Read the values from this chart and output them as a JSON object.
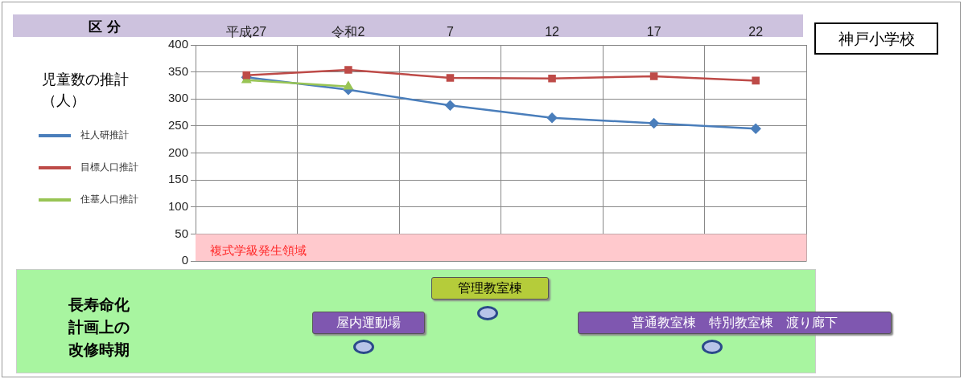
{
  "chart_data": {
    "type": "line",
    "title": "神戸小学校",
    "ylabel": "児童数の推計（人）",
    "categories": [
      "平成27",
      "令和2",
      "7",
      "12",
      "17",
      "22"
    ],
    "series": [
      {
        "name": "社人研推計",
        "color": "#4a7ebb",
        "marker": "diamond",
        "values": [
          340,
          317,
          288,
          265,
          255,
          245
        ]
      },
      {
        "name": "目標人口推計",
        "color": "#be4b48",
        "marker": "square",
        "values": [
          344,
          354,
          339,
          338,
          342,
          334
        ]
      },
      {
        "name": "住基人口推計",
        "color": "#98c454",
        "marker": "triangle",
        "values": [
          335,
          323,
          null,
          null,
          null,
          null
        ]
      }
    ],
    "ylim": [
      0,
      400
    ],
    "yticks": [
      0,
      50,
      100,
      150,
      200,
      250,
      300,
      350,
      400
    ],
    "grid": true,
    "legend": "left",
    "line_style": "solid",
    "bands": [
      {
        "axis": "y",
        "from": 0,
        "to": 50,
        "label": "複式学級発生領域",
        "color": "#ffc9cd"
      }
    ],
    "annotations": [
      "区 分",
      "長寿命化計画上の改修時期",
      "管理教室棟",
      "屋内運動場",
      "普通教室棟　特別教室棟　渡り廊下"
    ]
  }
}
